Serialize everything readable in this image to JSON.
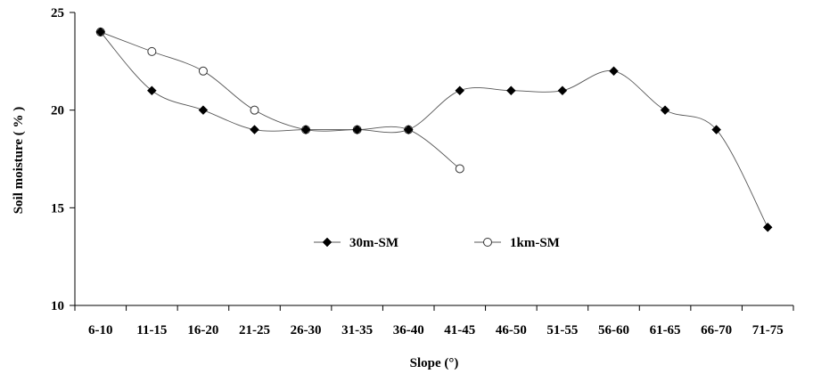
{
  "chart_data": {
    "type": "line",
    "categories": [
      "6-10",
      "11-15",
      "16-20",
      "21-25",
      "26-30",
      "31-35",
      "36-40",
      "41-45",
      "46-50",
      "51-55",
      "56-60",
      "61-65",
      "66-70",
      "71-75"
    ],
    "series": [
      {
        "name": "30m-SM",
        "marker": "filled-diamond",
        "values": [
          24,
          21,
          20,
          19,
          19,
          19,
          19,
          21,
          21,
          21,
          22,
          20,
          19,
          14
        ]
      },
      {
        "name": "1km-SM",
        "marker": "open-circle",
        "values": [
          24,
          23,
          22,
          20,
          19,
          19,
          19,
          17,
          null,
          null,
          null,
          null,
          null,
          null
        ]
      }
    ],
    "xlabel": "Slope (°)",
    "ylabel": "Soil  moisture ( % )",
    "ylim": [
      10,
      25
    ],
    "yticks": [
      10,
      15,
      20,
      25
    ],
    "grid": false,
    "legend": "center"
  }
}
